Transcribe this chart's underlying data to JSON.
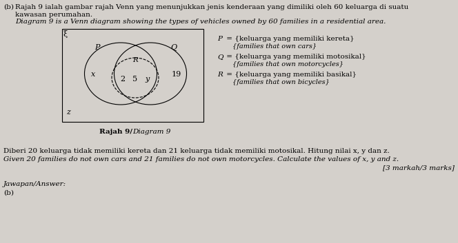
{
  "background_color": "#d4d0cb",
  "title_b": "(b)",
  "malay_line1": "Rajah 9 ialah gambar rajah Venn yang menunjukkan jenis kenderaan yang dimiliki oleh 60 keluarga di suatu",
  "malay_line2": "kawasan perumahan.",
  "english_line1": "Diagram 9 is a Venn diagram showing the types of vehicles owned by 60 families in a residential area.",
  "venn_label_xi": "ξ",
  "venn_label_P": "P",
  "venn_label_Q": "Q",
  "venn_label_R": "R",
  "venn_val_x": "x",
  "venn_val_2": "2",
  "venn_val_5": "5",
  "venn_val_y": "y",
  "venn_val_19": "19",
  "venn_val_z": "z",
  "diagram_caption_bold": "Rajah 9/",
  "diagram_caption_italic": "Diagram 9",
  "question_malay": "Diberi 20 keluarga tidak memiliki kereta dan 21 keluarga tidak memiliki motosikal. Hitung nilai x, y dan z.",
  "question_english": "Given 20 families do not own cars and 21 families do not own motorcycles. Calculate the values of x, y and z.",
  "marks": "[3 markah/3 marks]",
  "answer_label": "Jawapan/Answer:",
  "answer_b": "(b)"
}
